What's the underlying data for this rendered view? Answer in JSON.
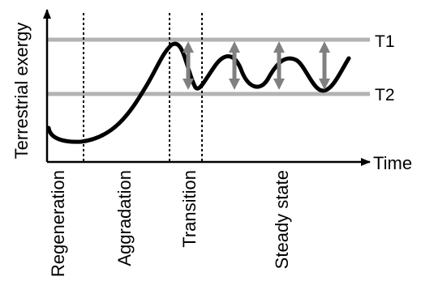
{
  "axes": {
    "y_label": "Terrestrial exergy",
    "x_label": "Time"
  },
  "thresholds": {
    "upper_label": "T1",
    "lower_label": "T2",
    "line_color": "#b3b3b3"
  },
  "phases": [
    {
      "id": "regeneration",
      "label": "Regeneration"
    },
    {
      "id": "aggradation",
      "label": "Aggradation"
    },
    {
      "id": "transition",
      "label": "Transition"
    },
    {
      "id": "steady-state",
      "label": "Steady state"
    }
  ],
  "colors": {
    "curve": "#000000",
    "arrows": "#808080",
    "axes": "#000000"
  }
}
